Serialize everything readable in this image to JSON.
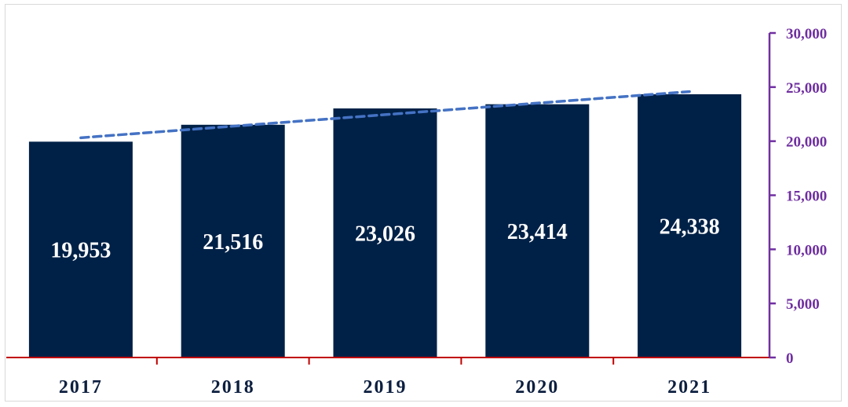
{
  "chart_data": {
    "type": "bar",
    "categories": [
      "2017",
      "2018",
      "2019",
      "2020",
      "2021"
    ],
    "values": [
      19953,
      21516,
      23026,
      23414,
      24338
    ],
    "data_labels": [
      "19,953",
      "21,516",
      "23,026",
      "23,414",
      "24,338"
    ],
    "y_ticks": [
      "0",
      "5,000",
      "10,000",
      "15,000",
      "20,000",
      "25,000",
      "30,000"
    ],
    "ylim": [
      0,
      30000
    ],
    "y_axis_side": "right",
    "trendline": {
      "type": "linear",
      "style": "dashed"
    },
    "grid": false,
    "legend": "none",
    "colors": {
      "bar": "#002147",
      "trendline": "#4472c4",
      "x_axis": "#c00000",
      "y_axis": "#7030a0",
      "y_tick_text": "#7030a0",
      "x_tick_text": "#0d1f3f",
      "label_text": "#ffffff"
    }
  }
}
